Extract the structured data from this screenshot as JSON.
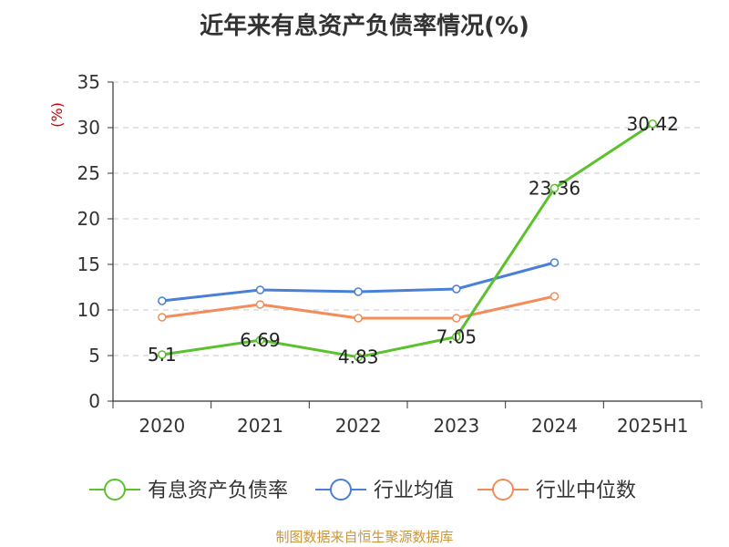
{
  "title": "近年来有息资产负债率情况(%)",
  "source": "制图数据来自恒生聚源数据库",
  "chart_data": {
    "type": "line",
    "categories": [
      "2020",
      "2021",
      "2022",
      "2023",
      "2024",
      "2025H1"
    ],
    "ylabel": "(%)",
    "ylim": [
      0,
      35
    ],
    "yticks": [
      0,
      5,
      10,
      15,
      20,
      25,
      30,
      35
    ],
    "grid": true,
    "legend_position": "bottom",
    "series": [
      {
        "name": "有息资产负债率",
        "color": "#5cc12e",
        "values": [
          5.1,
          6.69,
          4.83,
          7.05,
          23.36,
          30.42
        ],
        "labels": [
          "5.1",
          "6.69",
          "4.83",
          "7.05",
          "23.36",
          "30.42"
        ]
      },
      {
        "name": "行业均值",
        "color": "#4a7fd6",
        "values": [
          11.0,
          12.2,
          12.0,
          12.3,
          15.2,
          null
        ]
      },
      {
        "name": "行业中位数",
        "color": "#f28c5a",
        "values": [
          9.2,
          10.6,
          9.1,
          9.1,
          11.5,
          null
        ]
      }
    ]
  }
}
